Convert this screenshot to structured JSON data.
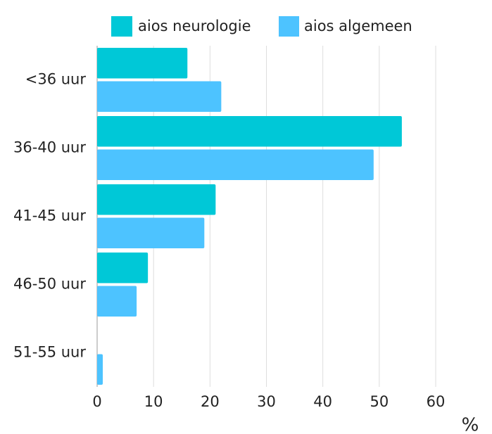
{
  "chart_data": {
    "type": "hbar",
    "categories": [
      "<36 uur",
      "36-40 uur",
      "41-45 uur",
      "46-50 uur",
      "51-55 uur"
    ],
    "series": [
      {
        "name": "aios neurologie",
        "color": "#00c8d7",
        "values": [
          16,
          54,
          21,
          9,
          0
        ]
      },
      {
        "name": "aios algemeen",
        "color": "#4dc3ff",
        "values": [
          22,
          49,
          19,
          7,
          1
        ]
      }
    ],
    "xlabel": "%",
    "xlim": [
      0,
      60
    ],
    "xticks": [
      0,
      10,
      20,
      30,
      40,
      50,
      60
    ],
    "grid": true,
    "legend": "top"
  }
}
